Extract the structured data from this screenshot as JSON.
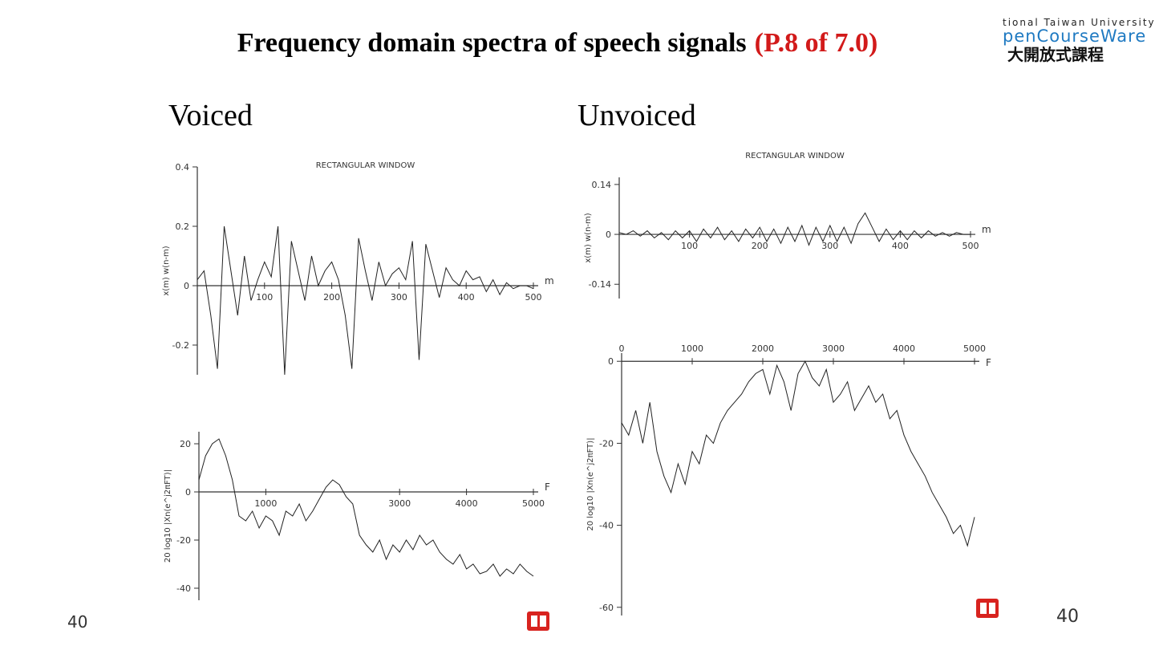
{
  "slide": {
    "title": "Frequency domain spectra of speech signals",
    "title_highlight": "(P.8 of 7.0)",
    "logo": [
      "tional Taiwan University",
      "penCourseWare",
      "大開放式課程"
    ],
    "label_voiced": "Voiced",
    "label_unvoiced": "Unvoiced",
    "page_number_left": "40",
    "page_number_right": "40"
  },
  "chart_data": [
    {
      "type": "line",
      "title": "RECTANGULAR WINDOW",
      "ylabel": "x(m) w(n-m)",
      "xlabel": "m",
      "x": [
        0,
        10,
        20,
        30,
        40,
        50,
        60,
        70,
        80,
        90,
        100,
        110,
        120,
        130,
        140,
        150,
        160,
        170,
        180,
        190,
        200,
        210,
        220,
        230,
        240,
        250,
        260,
        270,
        280,
        290,
        300,
        310,
        320,
        330,
        340,
        350,
        360,
        370,
        380,
        390,
        400,
        410,
        420,
        430,
        440,
        450,
        460,
        470,
        480,
        490,
        500
      ],
      "values": [
        0.02,
        0.05,
        -0.1,
        -0.28,
        0.2,
        0.05,
        -0.1,
        0.1,
        -0.05,
        0.02,
        0.08,
        0.03,
        0.2,
        -0.3,
        0.15,
        0.05,
        -0.05,
        0.1,
        0.0,
        0.05,
        0.08,
        0.02,
        -0.1,
        -0.28,
        0.16,
        0.05,
        -0.05,
        0.08,
        0.0,
        0.04,
        0.06,
        0.02,
        0.15,
        -0.25,
        0.14,
        0.05,
        -0.04,
        0.06,
        0.02,
        0.0,
        0.05,
        0.02,
        0.03,
        -0.02,
        0.02,
        -0.03,
        0.01,
        -0.01,
        0.0,
        0.0,
        -0.01
      ],
      "xlim": [
        0,
        500
      ],
      "ylim": [
        -0.3,
        0.4
      ],
      "xticks": [
        100,
        200,
        300,
        400,
        500
      ],
      "yticks": [
        0.4,
        0.2,
        0,
        -0.2
      ],
      "color": "#222222"
    },
    {
      "type": "line",
      "ylabel": "20 log10 |Xn(e^j2πFT)|",
      "xlabel": "F",
      "x": [
        0,
        100,
        200,
        300,
        400,
        500,
        600,
        700,
        800,
        900,
        1000,
        1100,
        1200,
        1300,
        1400,
        1500,
        1600,
        1700,
        1800,
        1900,
        2000,
        2100,
        2200,
        2300,
        2400,
        2500,
        2600,
        2700,
        2800,
        2900,
        3000,
        3100,
        3200,
        3300,
        3400,
        3500,
        3600,
        3700,
        3800,
        3900,
        4000,
        4100,
        4200,
        4300,
        4400,
        4500,
        4600,
        4700,
        4800,
        4900,
        5000
      ],
      "values": [
        5,
        15,
        20,
        22,
        15,
        5,
        -10,
        -12,
        -8,
        -15,
        -10,
        -12,
        -18,
        -8,
        -10,
        -5,
        -12,
        -8,
        -3,
        2,
        5,
        3,
        -2,
        -5,
        -18,
        -22,
        -25,
        -20,
        -28,
        -22,
        -25,
        -20,
        -24,
        -18,
        -22,
        -20,
        -25,
        -28,
        -30,
        -26,
        -32,
        -30,
        -34,
        -33,
        -30,
        -35,
        -32,
        -34,
        -30,
        -33,
        -35
      ],
      "xlim": [
        0,
        5000
      ],
      "ylim": [
        -45,
        25
      ],
      "xticks": [
        1000,
        3000,
        4000,
        5000
      ],
      "yticks": [
        20,
        0,
        -20,
        -40
      ],
      "color": "#222222"
    },
    {
      "type": "line",
      "title": "RECTANGULAR WINDOW",
      "ylabel": "x(m) w(n-m)",
      "xlabel": "m",
      "x": [
        0,
        10,
        20,
        30,
        40,
        50,
        60,
        70,
        80,
        90,
        100,
        110,
        120,
        130,
        140,
        150,
        160,
        170,
        180,
        190,
        200,
        210,
        220,
        230,
        240,
        250,
        260,
        270,
        280,
        290,
        300,
        310,
        320,
        330,
        340,
        350,
        360,
        370,
        380,
        390,
        400,
        410,
        420,
        430,
        440,
        450,
        460,
        470,
        480,
        490,
        500
      ],
      "values": [
        0.005,
        0.0,
        0.01,
        -0.005,
        0.01,
        -0.01,
        0.005,
        -0.015,
        0.01,
        -0.01,
        0.01,
        -0.02,
        0.015,
        -0.01,
        0.02,
        -0.015,
        0.01,
        -0.02,
        0.015,
        -0.01,
        0.02,
        -0.02,
        0.015,
        -0.025,
        0.02,
        -0.02,
        0.025,
        -0.03,
        0.02,
        -0.02,
        0.025,
        -0.02,
        0.02,
        -0.025,
        0.03,
        0.06,
        0.02,
        -0.02,
        0.015,
        -0.015,
        0.01,
        -0.015,
        0.01,
        -0.01,
        0.01,
        -0.005,
        0.005,
        -0.005,
        0.005,
        0.0,
        0.0
      ],
      "xlim": [
        0,
        500
      ],
      "ylim": [
        -0.18,
        0.16
      ],
      "xticks": [
        100,
        200,
        300,
        400,
        500
      ],
      "yticks": [
        0.14,
        0,
        -0.14
      ],
      "color": "#222222"
    },
    {
      "type": "line",
      "ylabel": "20 log10 |Xn(e^j2πFT)|",
      "xlabel": "F",
      "x": [
        0,
        100,
        200,
        300,
        400,
        500,
        600,
        700,
        800,
        900,
        1000,
        1100,
        1200,
        1300,
        1400,
        1500,
        1600,
        1700,
        1800,
        1900,
        2000,
        2100,
        2200,
        2300,
        2400,
        2500,
        2600,
        2700,
        2800,
        2900,
        3000,
        3100,
        3200,
        3300,
        3400,
        3500,
        3600,
        3700,
        3800,
        3900,
        4000,
        4100,
        4200,
        4300,
        4400,
        4500,
        4600,
        4700,
        4800,
        4900,
        5000
      ],
      "values": [
        -15,
        -18,
        -12,
        -20,
        -10,
        -22,
        -28,
        -32,
        -25,
        -30,
        -22,
        -25,
        -18,
        -20,
        -15,
        -12,
        -10,
        -8,
        -5,
        -3,
        -2,
        -8,
        -1,
        -5,
        -12,
        -3,
        0,
        -4,
        -6,
        -2,
        -10,
        -8,
        -5,
        -12,
        -9,
        -6,
        -10,
        -8,
        -14,
        -12,
        -18,
        -22,
        -25,
        -28,
        -32,
        -35,
        -38,
        -42,
        -40,
        -45,
        -38
      ],
      "xlim": [
        0,
        5000
      ],
      "ylim": [
        -62,
        2
      ],
      "xticks": [
        0,
        1000,
        2000,
        3000,
        4000,
        5000
      ],
      "yticks": [
        0,
        -20,
        -40,
        -60
      ],
      "color": "#222222"
    }
  ]
}
